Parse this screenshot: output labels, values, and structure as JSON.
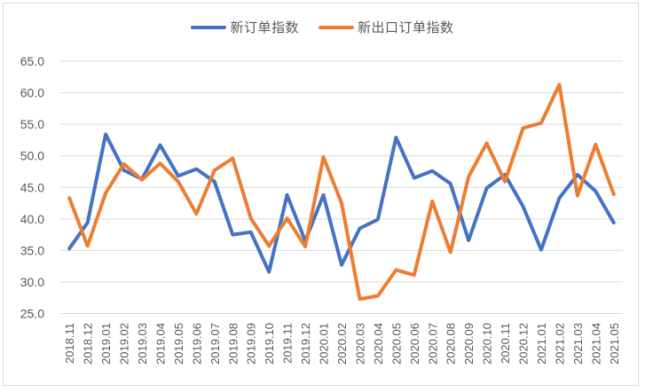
{
  "chart_data": {
    "type": "line",
    "title": "",
    "xlabel": "",
    "ylabel": "",
    "ylim": [
      25.0,
      65.0
    ],
    "yticks": [
      "25.0",
      "30.0",
      "35.0",
      "40.0",
      "45.0",
      "50.0",
      "55.0",
      "60.0",
      "65.0"
    ],
    "grid": true,
    "legend_position": "top",
    "categories": [
      "2018.11",
      "2018.12",
      "2019.01",
      "2019.02",
      "2019.03",
      "2019.04",
      "2019.05",
      "2019.06",
      "2019.07",
      "2019.08",
      "2019.09",
      "2019.10",
      "2019.11",
      "2019.12",
      "2020.01",
      "2020.02",
      "2020.03",
      "2020.04",
      "2020.05",
      "2020.06",
      "2020.07",
      "2020.08",
      "2020.09",
      "2020.10",
      "2020.11",
      "2020.12",
      "2021.01",
      "2021.02",
      "2021.03",
      "2021.04",
      "2021.05"
    ],
    "series": [
      {
        "name": "新订单指数",
        "color": "#4472C4",
        "values": [
          35.3,
          39.4,
          53.4,
          47.7,
          46.3,
          51.7,
          46.8,
          47.9,
          45.9,
          37.5,
          37.9,
          31.6,
          43.8,
          36.5,
          43.8,
          32.7,
          38.5,
          39.9,
          52.9,
          46.5,
          47.6,
          45.6,
          36.6,
          44.9,
          47.0,
          42.0,
          35.1,
          43.3,
          47.0,
          44.4,
          39.4
        ]
      },
      {
        "name": "新出口订单指数",
        "color": "#ED7D31",
        "values": [
          43.3,
          35.7,
          44.1,
          48.7,
          46.2,
          48.8,
          45.9,
          40.8,
          47.7,
          49.6,
          40.1,
          35.7,
          40.1,
          35.6,
          49.8,
          42.5,
          27.3,
          27.8,
          31.9,
          31.1,
          42.8,
          34.7,
          46.7,
          52.0,
          45.9,
          54.4,
          55.2,
          61.3,
          43.7,
          51.8,
          43.9
        ]
      }
    ]
  },
  "legend": {
    "items": [
      {
        "label": "新订单指数",
        "color": "#4472C4"
      },
      {
        "label": "新出口订单指数",
        "color": "#ED7D31"
      }
    ]
  }
}
